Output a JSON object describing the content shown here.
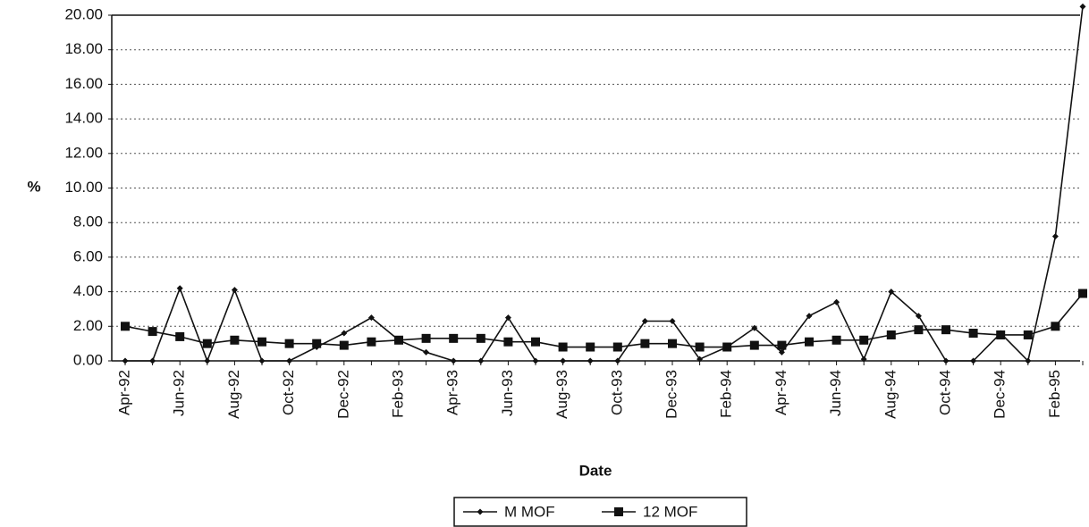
{
  "chart_data": {
    "type": "line",
    "x_label": "Date",
    "y_label": "%",
    "categories": [
      "Apr-92",
      null,
      "Jun-92",
      null,
      "Aug-92",
      null,
      "Oct-92",
      null,
      "Dec-92",
      null,
      "Feb-93",
      null,
      "Apr-93",
      null,
      "Jun-93",
      null,
      "Aug-93",
      null,
      "Oct-93",
      null,
      "Dec-93",
      null,
      "Feb-94",
      null,
      "Apr-94",
      null,
      "Jun-94",
      null,
      "Aug-94",
      null,
      "Oct-94",
      null,
      "Dec-94",
      null,
      "Feb-95",
      null
    ],
    "series": [
      {
        "name": "M MOF",
        "color": "#111111",
        "marker": "diamond",
        "values": [
          0,
          0,
          4.2,
          0,
          4.1,
          0,
          0,
          0.8,
          1.6,
          2.5,
          1.2,
          0.5,
          0,
          0,
          2.5,
          0,
          0,
          0,
          0,
          2.3,
          2.3,
          0.1,
          0.8,
          1.9,
          0.5,
          2.6,
          3.4,
          0.1,
          4.0,
          2.6,
          0,
          0,
          1.6,
          0,
          7.2,
          20.5
        ]
      },
      {
        "name": "12 MOF",
        "color": "#111111",
        "marker": "square",
        "values": [
          2.0,
          1.7,
          1.4,
          1.0,
          1.2,
          1.1,
          1.0,
          1.0,
          0.9,
          1.1,
          1.2,
          1.3,
          1.3,
          1.3,
          1.1,
          1.1,
          0.8,
          0.8,
          0.8,
          1.0,
          1.0,
          0.8,
          0.8,
          0.9,
          0.9,
          1.1,
          1.2,
          1.2,
          1.5,
          1.8,
          1.8,
          1.6,
          1.5,
          1.5,
          2.0,
          3.9
        ]
      }
    ],
    "ylim": [
      0,
      20
    ],
    "yticks": [
      {
        "value": 0,
        "label": "0.00"
      },
      {
        "value": 2,
        "label": "2.00"
      },
      {
        "value": 4,
        "label": "4.00"
      },
      {
        "value": 6,
        "label": "6.00"
      },
      {
        "value": 8,
        "label": "8.00"
      },
      {
        "value": 10,
        "label": "10.00"
      },
      {
        "value": 12,
        "label": "12.00"
      },
      {
        "value": 14,
        "label": "14.00"
      },
      {
        "value": 16,
        "label": "16.00"
      },
      {
        "value": 18,
        "label": "18.00"
      },
      {
        "value": 20,
        "label": "20.00"
      }
    ],
    "grid": true,
    "legend": "bottom"
  }
}
